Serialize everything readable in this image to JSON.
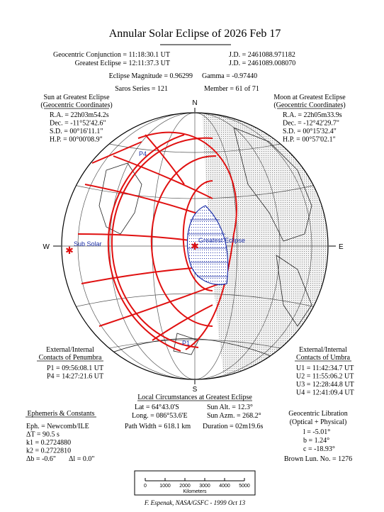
{
  "title": "Annular Solar Eclipse of 2026 Feb 17",
  "header": {
    "conjunction": "Geocentric Conjunction =  11:18:30.1 UT",
    "conjunction_jd": "J.D. =  2461088.971182",
    "greatest": "Greatest Eclipse =  12:11:37.3 UT",
    "greatest_jd": "J.D. =  2461089.008070",
    "magnitude": "Eclipse Magnitude =  0.96299",
    "gamma": "Gamma = -0.97440",
    "saros": "Saros Series = 121",
    "member": "Member = 61 of 71"
  },
  "sun": {
    "title": "Sun at Greatest Eclipse",
    "subtitle": "(Geocentric Coordinates)",
    "lines": [
      "R.A. = 22h03m54.2s",
      "Dec. = -11°52'42.6\"",
      "S.D. = 00°16'11.1\"",
      "H.P. = 00°00'08.9\""
    ]
  },
  "moon": {
    "title": "Moon at Greatest Eclipse",
    "subtitle": "(Geocentric Coordinates)",
    "lines": [
      "R.A. = 22h05m33.9s",
      "Dec. = -12°42'29.7\"",
      "S.D. = 00°15'32.4\"",
      "H.P. = 00°57'02.1\""
    ]
  },
  "map": {
    "north": "N",
    "south": "S",
    "east": "E",
    "west": "W",
    "sub_solar": "Sub Solar",
    "greatest_eclipse": "Greatest Eclipse",
    "p1": "P1",
    "p4": "P4"
  },
  "penumbra": {
    "title": "External/Internal",
    "subtitle": "Contacts of Penumbra",
    "lines": [
      "P1 = 09:56:08.1 UT",
      "P4 = 14:27:21.6 UT"
    ]
  },
  "umbra": {
    "title": "External/Internal",
    "subtitle": "Contacts of Umbra",
    "lines": [
      "U1 = 11:42:34.7 UT",
      "U2 = 11:55:06.2 UT",
      "U3 = 12:28:44.8 UT",
      "U4 = 12:41:09.4 UT"
    ]
  },
  "local": {
    "title": "Local Circumstances at Greatest Eclipse",
    "lat": "Lat =  64°43.0'S",
    "sun_alt": "Sun Alt. =   12.3°",
    "long": "Long. = 086°53.6'E",
    "sun_azm": "Sun Azm. = 268.2°",
    "path_width": "Path Width = 618.1 km",
    "duration": "Duration = 02m19.6s"
  },
  "ephemeris": {
    "title": "Ephemeris & Constants",
    "lines": [
      "Eph. = Newcomb/ILE",
      "ΔT =    90.5 s",
      "k1 = 0.2724880",
      "k2 = 0.2722810"
    ],
    "db": "Δb =  -0.6\"",
    "dl": "Δl =    0.0\""
  },
  "libration": {
    "title": "Geocentric Libration",
    "subtitle": "(Optical + Physical)",
    "lines": [
      "l =   -5.01°",
      "b =    1.24°",
      "c = -18.93°"
    ],
    "brown": "Brown Lun. No. = 1276"
  },
  "scale": {
    "xlim": [
      0,
      5000
    ],
    "xticks": [
      0,
      1000,
      2000,
      3000,
      4000,
      5000
    ],
    "label": "Kilometers"
  },
  "credit": "F. Espenak, NASA/GSFC - 1999 Oct 13"
}
